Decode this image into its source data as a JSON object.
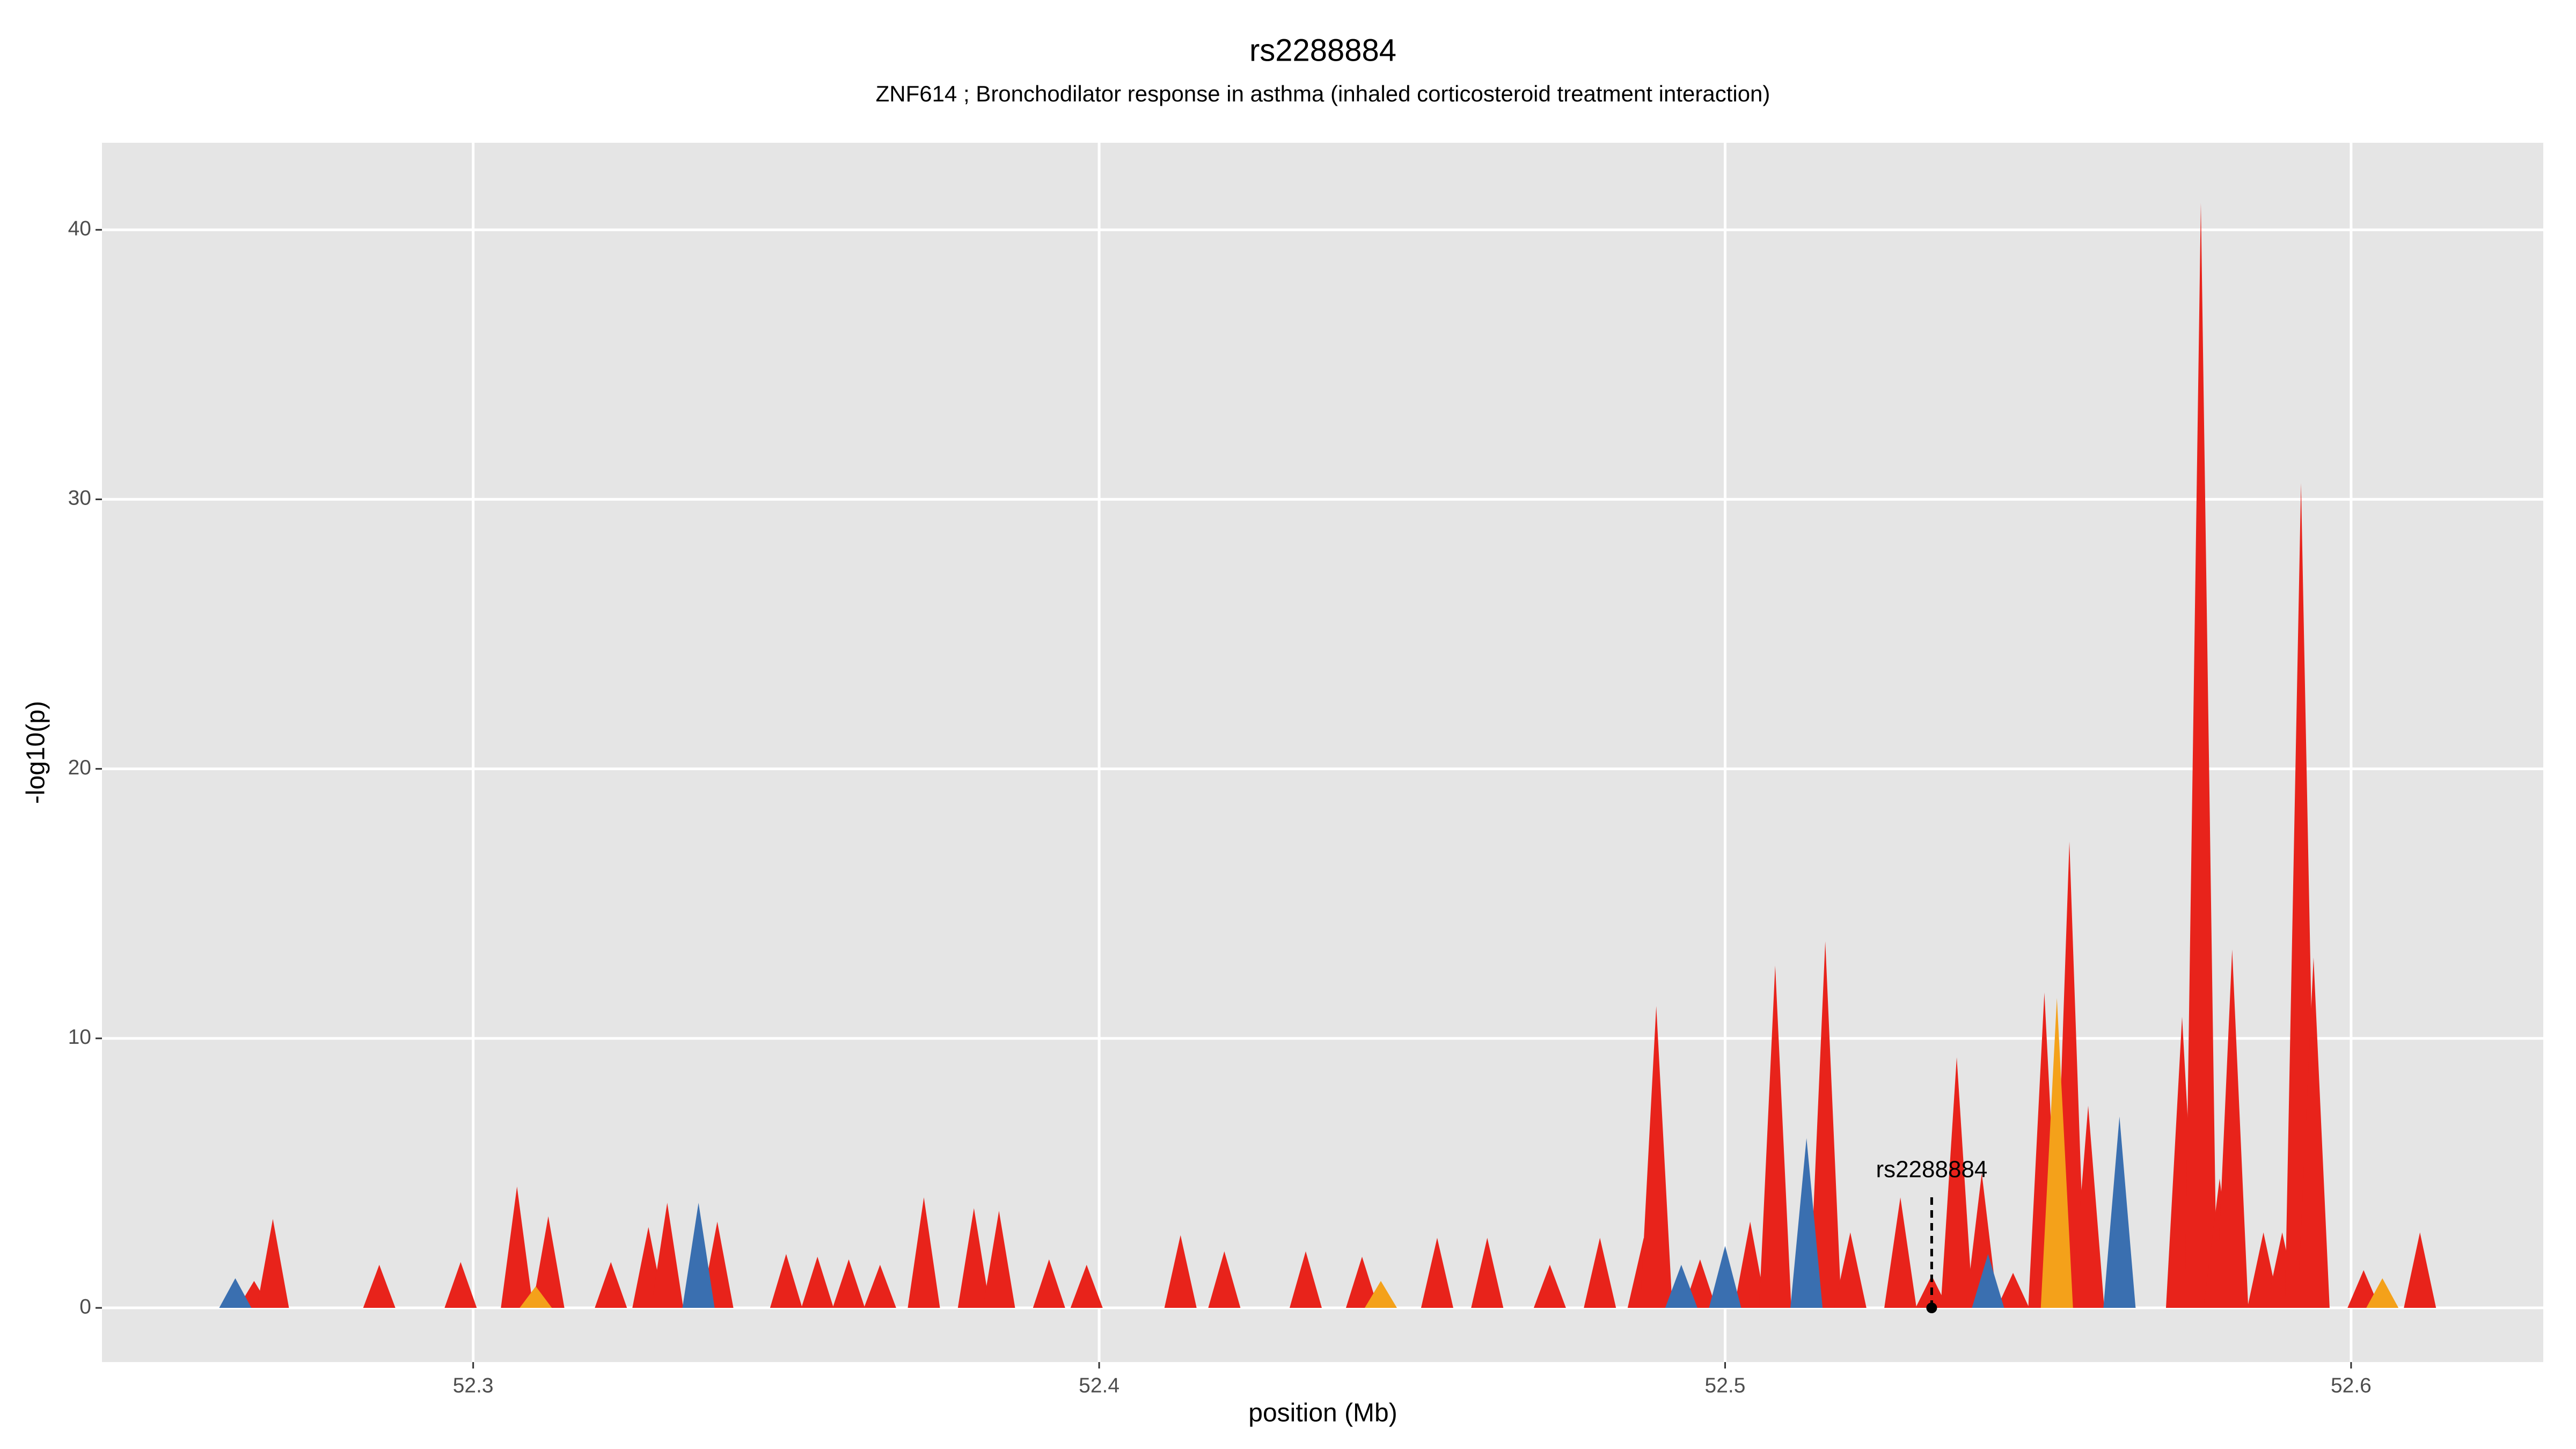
{
  "chart_data": {
    "type": "spike",
    "title": "rs2288884",
    "subtitle": "ZNF614 ; Bronchodilator response in asthma (inhaled corticosteroid treatment interaction)",
    "x_label": "position (Mb)",
    "y_label": "-log10(p)",
    "xlim": [
      52.2407,
      52.6307
    ],
    "ylim": [
      -2.01,
      43.23
    ],
    "xticks": [
      52.3,
      52.4,
      52.5,
      52.6
    ],
    "yticks": [
      0,
      10,
      20,
      30,
      40
    ],
    "grid": true,
    "series": [
      {
        "color": "#e8231b",
        "x": [
          52.265,
          52.268,
          52.285,
          52.298,
          52.307,
          52.312,
          52.322,
          52.328,
          52.331,
          52.339,
          52.35,
          52.355,
          52.36,
          52.365,
          52.372,
          52.38,
          52.384,
          52.392,
          52.398,
          52.413,
          52.42,
          52.433,
          52.442,
          52.454,
          52.462,
          52.472,
          52.48,
          52.487,
          52.489,
          52.496,
          52.504,
          52.508,
          52.516,
          52.52,
          52.528,
          52.533,
          52.537,
          52.541,
          52.546,
          52.551,
          52.555,
          52.558,
          52.563,
          52.573,
          52.576,
          52.579,
          52.581,
          52.586,
          52.589,
          52.592,
          52.594,
          52.602,
          52.611
        ],
        "values": [
          1.0,
          3.3,
          1.6,
          1.7,
          4.5,
          3.4,
          1.7,
          3.0,
          3.9,
          3.2,
          2.0,
          1.9,
          1.8,
          1.6,
          4.1,
          3.7,
          3.6,
          1.8,
          1.6,
          2.7,
          2.1,
          2.1,
          1.9,
          2.6,
          2.6,
          1.6,
          2.6,
          2.6,
          11.2,
          1.8,
          3.2,
          12.7,
          13.6,
          2.8,
          4.1,
          1.2,
          9.3,
          5.0,
          1.3,
          11.7,
          17.3,
          7.5,
          3.8,
          10.8,
          41.0,
          4.8,
          13.3,
          2.8,
          2.8,
          30.6,
          13.0,
          1.4,
          2.8
        ]
      },
      {
        "color": "#f4a11a",
        "x": [
          52.31,
          52.445,
          52.553,
          52.605
        ],
        "values": [
          0.8,
          1.0,
          11.5,
          1.1
        ]
      },
      {
        "color": "#3a6fb0",
        "x": [
          52.262,
          52.336,
          52.493,
          52.5,
          52.513,
          52.542,
          52.563
        ],
        "values": [
          1.1,
          3.9,
          1.6,
          2.3,
          6.3,
          2.0,
          7.1
        ]
      }
    ],
    "annotations": [
      {
        "text": "rs2288884",
        "x": 52.533,
        "y": 0
      }
    ]
  }
}
